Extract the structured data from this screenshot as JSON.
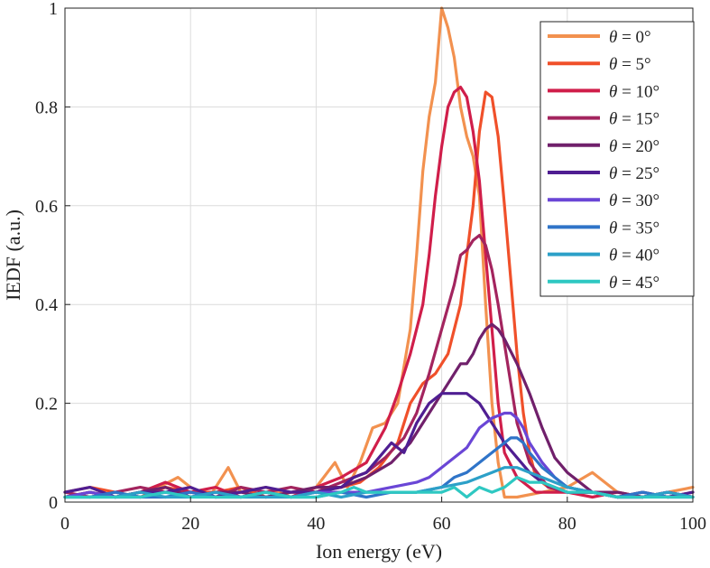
{
  "chart_data": {
    "type": "line",
    "title": "",
    "xlabel": "Ion energy (eV)",
    "ylabel": "IEDF (a.u.)",
    "xlim": [
      0,
      100
    ],
    "ylim": [
      0,
      1
    ],
    "xticks": [
      0,
      20,
      40,
      60,
      80,
      100
    ],
    "xtick_labels": [
      "0",
      "20",
      "40",
      "60",
      "80",
      "100"
    ],
    "yticks": [
      0,
      0.2,
      0.4,
      0.6,
      0.8,
      1
    ],
    "ytick_labels": [
      "0",
      "0.2",
      "0.4",
      "0.6",
      "0.8",
      "1"
    ],
    "grid": true,
    "legend_position": "top-right",
    "series": [
      {
        "name": "θ = 0°",
        "angle": "0°",
        "color": "#f2914f",
        "x": [
          0,
          4,
          8,
          12,
          15,
          18,
          20,
          23,
          26,
          28,
          32,
          36,
          40,
          43,
          45,
          47,
          49,
          51,
          53,
          55,
          56,
          57,
          58,
          59,
          60,
          61,
          62,
          63,
          64,
          65,
          66,
          67,
          68,
          69,
          70,
          72,
          76,
          80,
          84,
          88,
          92,
          96,
          100
        ],
        "values": [
          0.01,
          0.02,
          0.01,
          0.02,
          0.03,
          0.05,
          0.03,
          0.01,
          0.07,
          0.02,
          0.03,
          0.01,
          0.03,
          0.08,
          0.03,
          0.08,
          0.15,
          0.16,
          0.2,
          0.35,
          0.5,
          0.67,
          0.78,
          0.85,
          1.0,
          0.96,
          0.9,
          0.8,
          0.74,
          0.7,
          0.62,
          0.4,
          0.2,
          0.08,
          0.01,
          0.01,
          0.02,
          0.03,
          0.06,
          0.02,
          0.01,
          0.02,
          0.03
        ]
      },
      {
        "name": "θ = 5°",
        "angle": "5°",
        "color": "#f0502a",
        "x": [
          0,
          4,
          8,
          12,
          16,
          20,
          24,
          28,
          32,
          36,
          40,
          44,
          47,
          50,
          53,
          55,
          57,
          59,
          61,
          63,
          65,
          66,
          67,
          68,
          69,
          70,
          71,
          72,
          73,
          74,
          75,
          77,
          80,
          84,
          88,
          92,
          96,
          100
        ],
        "values": [
          0.02,
          0.03,
          0.02,
          0.01,
          0.03,
          0.02,
          0.02,
          0.03,
          0.01,
          0.02,
          0.02,
          0.03,
          0.04,
          0.07,
          0.12,
          0.2,
          0.24,
          0.26,
          0.3,
          0.4,
          0.6,
          0.75,
          0.83,
          0.82,
          0.74,
          0.6,
          0.45,
          0.3,
          0.18,
          0.1,
          0.05,
          0.03,
          0.02,
          0.02,
          0.01,
          0.02,
          0.01,
          0.02
        ]
      },
      {
        "name": "θ = 10°",
        "angle": "10°",
        "color": "#d01e4a",
        "x": [
          0,
          4,
          8,
          12,
          16,
          20,
          24,
          28,
          32,
          36,
          40,
          44,
          48,
          51,
          53,
          55,
          57,
          58,
          59,
          60,
          61,
          62,
          63,
          64,
          65,
          66,
          67,
          68,
          69,
          70,
          72,
          75,
          80,
          84,
          88,
          92,
          96,
          100
        ],
        "values": [
          0.01,
          0.02,
          0.01,
          0.02,
          0.04,
          0.02,
          0.03,
          0.01,
          0.02,
          0.01,
          0.03,
          0.05,
          0.08,
          0.15,
          0.22,
          0.3,
          0.4,
          0.5,
          0.62,
          0.72,
          0.8,
          0.83,
          0.84,
          0.82,
          0.75,
          0.65,
          0.5,
          0.35,
          0.2,
          0.1,
          0.05,
          0.02,
          0.02,
          0.01,
          0.02,
          0.01,
          0.02,
          0.01
        ]
      },
      {
        "name": "θ = 15°",
        "angle": "15°",
        "color": "#a3245e",
        "x": [
          0,
          4,
          8,
          12,
          16,
          20,
          24,
          28,
          32,
          36,
          40,
          44,
          48,
          51,
          54,
          56,
          58,
          60,
          62,
          63,
          64,
          65,
          66,
          67,
          68,
          69,
          70,
          71,
          72,
          74,
          77,
          80,
          84,
          88,
          92,
          96,
          100
        ],
        "values": [
          0.02,
          0.01,
          0.02,
          0.03,
          0.02,
          0.02,
          0.01,
          0.03,
          0.02,
          0.03,
          0.02,
          0.04,
          0.06,
          0.09,
          0.13,
          0.18,
          0.26,
          0.35,
          0.44,
          0.5,
          0.51,
          0.53,
          0.54,
          0.52,
          0.47,
          0.4,
          0.32,
          0.24,
          0.16,
          0.08,
          0.03,
          0.02,
          0.02,
          0.01,
          0.01,
          0.02,
          0.01
        ]
      },
      {
        "name": "θ = 20°",
        "angle": "20°",
        "color": "#70206b",
        "x": [
          0,
          4,
          8,
          12,
          16,
          20,
          24,
          28,
          32,
          36,
          40,
          44,
          48,
          52,
          55,
          58,
          60,
          62,
          63,
          64,
          65,
          66,
          67,
          68,
          69,
          70,
          72,
          74,
          76,
          78,
          80,
          84,
          88,
          92,
          96,
          100
        ],
        "values": [
          0.01,
          0.02,
          0.01,
          0.02,
          0.03,
          0.01,
          0.02,
          0.02,
          0.01,
          0.02,
          0.03,
          0.03,
          0.05,
          0.08,
          0.12,
          0.18,
          0.22,
          0.26,
          0.28,
          0.28,
          0.3,
          0.33,
          0.35,
          0.36,
          0.35,
          0.33,
          0.28,
          0.22,
          0.15,
          0.09,
          0.06,
          0.02,
          0.02,
          0.01,
          0.02,
          0.01
        ]
      },
      {
        "name": "θ = 25°",
        "angle": "25°",
        "color": "#4f1e92",
        "x": [
          0,
          4,
          8,
          12,
          16,
          20,
          24,
          28,
          32,
          36,
          40,
          44,
          46,
          48,
          50,
          52,
          54,
          56,
          58,
          60,
          62,
          64,
          66,
          68,
          70,
          72,
          74,
          76,
          78,
          80,
          84,
          88,
          92,
          96,
          100
        ],
        "values": [
          0.02,
          0.03,
          0.01,
          0.02,
          0.02,
          0.03,
          0.01,
          0.02,
          0.03,
          0.02,
          0.02,
          0.03,
          0.05,
          0.06,
          0.09,
          0.12,
          0.1,
          0.16,
          0.2,
          0.22,
          0.22,
          0.22,
          0.2,
          0.16,
          0.12,
          0.09,
          0.06,
          0.04,
          0.03,
          0.02,
          0.02,
          0.01,
          0.02,
          0.01,
          0.02
        ]
      },
      {
        "name": "θ = 30°",
        "angle": "30°",
        "color": "#6a46d6",
        "x": [
          0,
          4,
          8,
          12,
          16,
          20,
          24,
          28,
          32,
          36,
          40,
          44,
          48,
          52,
          56,
          58,
          60,
          62,
          64,
          66,
          68,
          70,
          71,
          72,
          73,
          74,
          76,
          78,
          80,
          84,
          88,
          92,
          96,
          100
        ],
        "values": [
          0.01,
          0.02,
          0.01,
          0.01,
          0.02,
          0.01,
          0.02,
          0.01,
          0.02,
          0.01,
          0.02,
          0.02,
          0.02,
          0.03,
          0.04,
          0.05,
          0.07,
          0.09,
          0.11,
          0.15,
          0.17,
          0.18,
          0.18,
          0.17,
          0.15,
          0.12,
          0.08,
          0.05,
          0.03,
          0.02,
          0.01,
          0.01,
          0.02,
          0.01
        ]
      },
      {
        "name": "θ = 35°",
        "angle": "35°",
        "color": "#2f74c8",
        "x": [
          0,
          4,
          8,
          12,
          16,
          20,
          24,
          28,
          32,
          36,
          40,
          44,
          48,
          52,
          56,
          60,
          62,
          64,
          66,
          68,
          70,
          71,
          72,
          73,
          74,
          76,
          78,
          80,
          84,
          88,
          92,
          96,
          100
        ],
        "values": [
          0.01,
          0.01,
          0.02,
          0.01,
          0.01,
          0.02,
          0.01,
          0.01,
          0.02,
          0.01,
          0.01,
          0.02,
          0.01,
          0.02,
          0.02,
          0.03,
          0.05,
          0.06,
          0.08,
          0.1,
          0.12,
          0.13,
          0.13,
          0.12,
          0.1,
          0.07,
          0.05,
          0.03,
          0.02,
          0.01,
          0.02,
          0.01,
          0.01
        ]
      },
      {
        "name": "θ = 40°",
        "angle": "40°",
        "color": "#2ca0c8",
        "x": [
          0,
          4,
          8,
          12,
          16,
          20,
          24,
          28,
          32,
          36,
          40,
          44,
          48,
          52,
          56,
          60,
          64,
          66,
          68,
          70,
          72,
          74,
          76,
          78,
          80,
          84,
          88,
          92,
          96,
          100
        ],
        "values": [
          0.01,
          0.01,
          0.01,
          0.02,
          0.01,
          0.01,
          0.02,
          0.01,
          0.01,
          0.01,
          0.02,
          0.01,
          0.02,
          0.02,
          0.02,
          0.03,
          0.04,
          0.05,
          0.06,
          0.07,
          0.07,
          0.06,
          0.05,
          0.04,
          0.03,
          0.02,
          0.01,
          0.01,
          0.02,
          0.01
        ]
      },
      {
        "name": "θ = 45°",
        "angle": "45°",
        "color": "#2ec8c2",
        "x": [
          0,
          4,
          8,
          12,
          16,
          20,
          24,
          28,
          32,
          36,
          40,
          44,
          46,
          48,
          52,
          56,
          60,
          62,
          64,
          66,
          68,
          70,
          72,
          74,
          76,
          78,
          80,
          84,
          88,
          92,
          96,
          100
        ],
        "values": [
          0.01,
          0.01,
          0.01,
          0.01,
          0.02,
          0.01,
          0.01,
          0.01,
          0.02,
          0.01,
          0.01,
          0.02,
          0.03,
          0.02,
          0.02,
          0.02,
          0.02,
          0.03,
          0.01,
          0.03,
          0.02,
          0.03,
          0.05,
          0.04,
          0.04,
          0.03,
          0.02,
          0.02,
          0.01,
          0.01,
          0.01,
          0.01
        ]
      }
    ]
  },
  "legend": {
    "theta_symbol": "θ",
    "equals": " = "
  }
}
